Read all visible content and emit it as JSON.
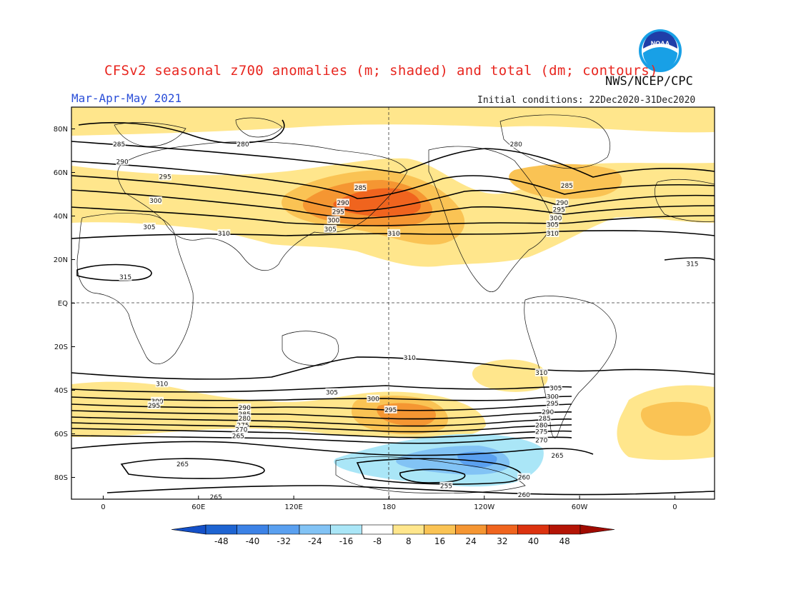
{
  "header": {
    "title": "CFSv2 seasonal z700 anomalies (m; shaded) and total (dm; contours)",
    "agency": "NWS/NCEP/CPC",
    "season": "Mar-Apr-May 2021",
    "initial_conditions": "Initial conditions: 22Dec2020-31Dec2020",
    "logo_text": "NOAA"
  },
  "axes": {
    "lat_labels": [
      "80N",
      "60N",
      "40N",
      "20N",
      "EQ",
      "20S",
      "40S",
      "60S",
      "80S"
    ],
    "lat_values": [
      80,
      60,
      40,
      20,
      0,
      -20,
      -40,
      -60,
      -80
    ],
    "lon_labels": [
      "0",
      "60E",
      "120E",
      "180",
      "120W",
      "60W",
      "0"
    ],
    "lon_values": [
      0,
      60,
      120,
      180,
      240,
      300,
      360
    ],
    "lon_range": [
      -20,
      385
    ],
    "lat_range": [
      -90,
      90
    ]
  },
  "colorbar": {
    "labels": [
      "-48",
      "-40",
      "-32",
      "-24",
      "-16",
      "-8",
      "8",
      "16",
      "24",
      "32",
      "40",
      "48"
    ],
    "colors": [
      "#1e64d2",
      "#3c82e6",
      "#5aa0f0",
      "#82c3f5",
      "#aae6f7",
      "#ffffff",
      "#ffe68c",
      "#fac354",
      "#f59632",
      "#f0641e",
      "#dc320f",
      "#b41405"
    ]
  },
  "contour_labels": [
    {
      "text": "285",
      "lon": 10,
      "lat": 73
    },
    {
      "text": "280",
      "lon": 88,
      "lat": 73
    },
    {
      "text": "290",
      "lon": 12,
      "lat": 65
    },
    {
      "text": "295",
      "lon": 39,
      "lat": 58
    },
    {
      "text": "300",
      "lon": 33,
      "lat": 47
    },
    {
      "text": "305",
      "lon": 29,
      "lat": 35
    },
    {
      "text": "310",
      "lon": 76,
      "lat": 32
    },
    {
      "text": "315",
      "lon": 14,
      "lat": 12
    },
    {
      "text": "285",
      "lon": 162,
      "lat": 53
    },
    {
      "text": "290",
      "lon": 151,
      "lat": 46
    },
    {
      "text": "295",
      "lon": 148,
      "lat": 42
    },
    {
      "text": "300",
      "lon": 145,
      "lat": 38
    },
    {
      "text": "305",
      "lon": 143,
      "lat": 34
    },
    {
      "text": "310",
      "lon": 183,
      "lat": 32
    },
    {
      "text": "280",
      "lon": 260,
      "lat": 73
    },
    {
      "text": "285",
      "lon": 292,
      "lat": 54
    },
    {
      "text": "290",
      "lon": 289,
      "lat": 46
    },
    {
      "text": "295",
      "lon": 287,
      "lat": 43
    },
    {
      "text": "300",
      "lon": 285,
      "lat": 39
    },
    {
      "text": "305",
      "lon": 283,
      "lat": 36
    },
    {
      "text": "310",
      "lon": 283,
      "lat": 32
    },
    {
      "text": "315",
      "lon": 371,
      "lat": 18
    },
    {
      "text": "310",
      "lon": 193,
      "lat": -25
    },
    {
      "text": "310",
      "lon": 276,
      "lat": -32
    },
    {
      "text": "310",
      "lon": 37,
      "lat": -37
    },
    {
      "text": "305",
      "lon": 144,
      "lat": -41
    },
    {
      "text": "300",
      "lon": 170,
      "lat": -44
    },
    {
      "text": "295",
      "lon": 181,
      "lat": -49
    },
    {
      "text": "305",
      "lon": 285,
      "lat": -39
    },
    {
      "text": "300",
      "lon": 283,
      "lat": -43
    },
    {
      "text": "295",
      "lon": 283,
      "lat": -46
    },
    {
      "text": "290",
      "lon": 280,
      "lat": -50
    },
    {
      "text": "285",
      "lon": 278,
      "lat": -53
    },
    {
      "text": "280",
      "lon": 276,
      "lat": -56
    },
    {
      "text": "275",
      "lon": 276,
      "lat": -59
    },
    {
      "text": "270",
      "lon": 276,
      "lat": -63
    },
    {
      "text": "265",
      "lon": 286,
      "lat": -70
    },
    {
      "text": "300",
      "lon": 34,
      "lat": -45
    },
    {
      "text": "295",
      "lon": 32,
      "lat": -47
    },
    {
      "text": "290",
      "lon": 89,
      "lat": -48
    },
    {
      "text": "285",
      "lon": 89,
      "lat": -51
    },
    {
      "text": "280",
      "lon": 89,
      "lat": -53
    },
    {
      "text": "275",
      "lon": 88,
      "lat": -56
    },
    {
      "text": "270",
      "lon": 87,
      "lat": -58
    },
    {
      "text": "265",
      "lon": 85,
      "lat": -61
    },
    {
      "text": "265",
      "lon": 50,
      "lat": -74
    },
    {
      "text": "255",
      "lon": 216,
      "lat": -84
    },
    {
      "text": "260",
      "lon": 265,
      "lat": -80
    },
    {
      "text": "260",
      "lon": 265,
      "lat": -88
    },
    {
      "text": "265",
      "lon": 71,
      "lat": -89
    }
  ]
}
